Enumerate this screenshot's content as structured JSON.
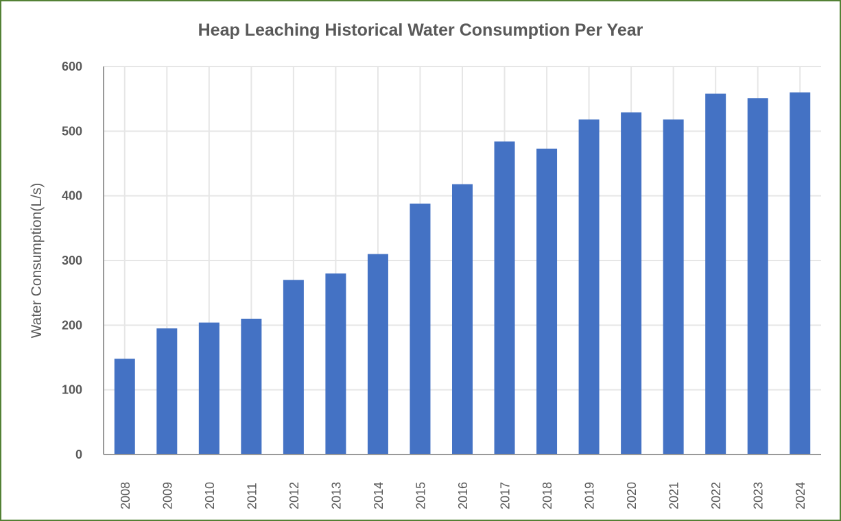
{
  "chart_data": {
    "type": "bar",
    "title": "Heap Leaching Historical Water Consumption Per Year",
    "xlabel": "",
    "ylabel": "Water Consumption(L/s)",
    "categories": [
      "2008",
      "2009",
      "2010",
      "2011",
      "2012",
      "2013",
      "2014",
      "2015",
      "2016",
      "2017",
      "2018",
      "2019",
      "2020",
      "2021",
      "2022",
      "2023",
      "2024"
    ],
    "values": [
      148,
      195,
      204,
      210,
      270,
      280,
      310,
      388,
      418,
      484,
      473,
      518,
      529,
      518,
      558,
      551,
      560
    ],
    "ylim": [
      0,
      600
    ],
    "yticks": [
      "0",
      "100",
      "200",
      "300",
      "400",
      "500",
      "600"
    ],
    "grid": true,
    "legend": "none",
    "colors": {
      "bar": "#4472C4",
      "border": "#538135",
      "text": "#595959",
      "grid": "#E6E6E6"
    }
  }
}
